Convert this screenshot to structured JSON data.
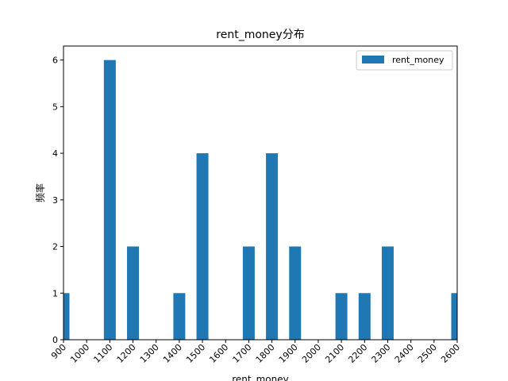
{
  "chart_data": {
    "type": "bar",
    "title": "rent_money分布",
    "xlabel": "rent_money",
    "ylabel": "频率",
    "categories": [
      "900",
      "1000",
      "1100",
      "1200",
      "1300",
      "1400",
      "1500",
      "1600",
      "1700",
      "1800",
      "1900",
      "2000",
      "2100",
      "2200",
      "2300",
      "2400",
      "2500",
      "2600"
    ],
    "series": [
      {
        "name": "rent_money",
        "values": [
          1,
          0,
          6,
          2,
          0,
          1,
          4,
          0,
          2,
          4,
          2,
          0,
          1,
          1,
          2,
          0,
          0,
          1
        ]
      }
    ],
    "ylim": [
      0,
      6.3
    ],
    "yticks": [
      "0",
      "1",
      "2",
      "3",
      "4",
      "5",
      "6"
    ],
    "grid": false,
    "legend_position": "top-right",
    "bar_color": "#1f77b4"
  }
}
